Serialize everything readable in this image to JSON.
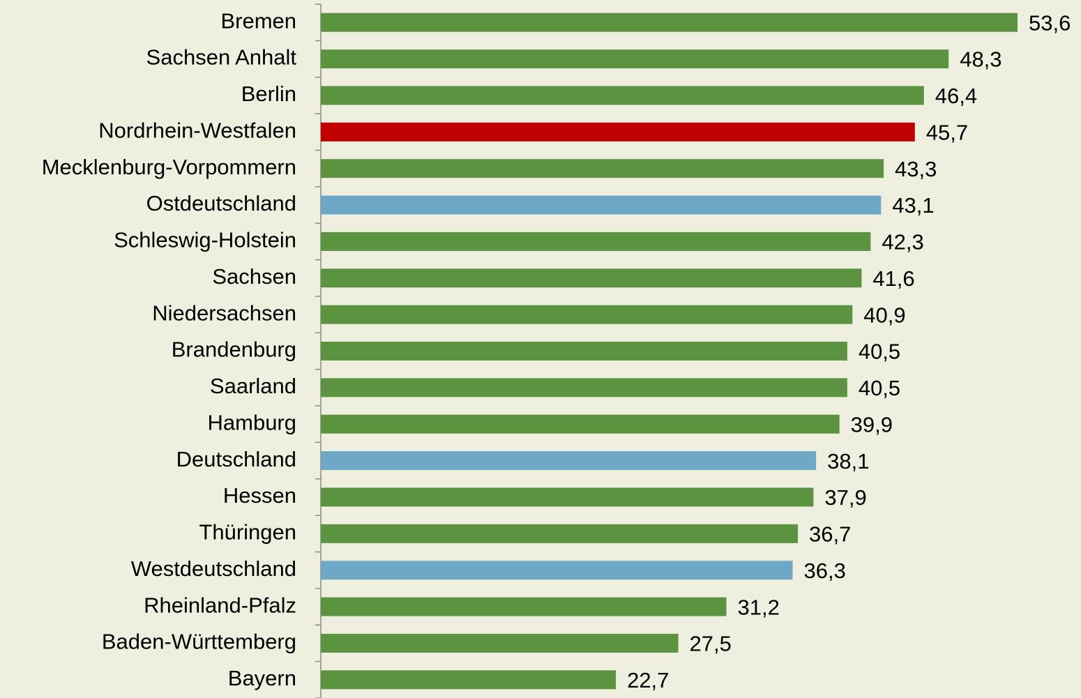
{
  "chart_data": {
    "type": "bar",
    "orientation": "horizontal",
    "categories": [
      "Bremen",
      "Sachsen Anhalt",
      "Berlin",
      "Nordrhein-Westfalen",
      "Mecklenburg-Vorpommern",
      "Ostdeutschland",
      "Schleswig-Holstein",
      "Sachsen",
      "Niedersachsen",
      "Brandenburg",
      "Saarland",
      "Hamburg",
      "Deutschland",
      "Hessen",
      "Thüringen",
      "Westdeutschland",
      "Rheinland-Pfalz",
      "Baden-Württemberg",
      "Bayern"
    ],
    "values": [
      53.6,
      48.3,
      46.4,
      45.7,
      43.3,
      43.1,
      42.3,
      41.6,
      40.9,
      40.5,
      40.5,
      39.9,
      38.1,
      37.9,
      36.7,
      36.3,
      31.2,
      27.5,
      22.7
    ],
    "value_labels": [
      "53,6",
      "48,3",
      "46,4",
      "45,7",
      "43,3",
      "43,1",
      "42,3",
      "41,6",
      "40,9",
      "40,5",
      "40,5",
      "39,9",
      "38,1",
      "37,9",
      "36,7",
      "36,3",
      "31,2",
      "27,5",
      "22,7"
    ],
    "colors": [
      "#5b9340",
      "#5b9340",
      "#5b9340",
      "#c00000",
      "#5b9340",
      "#6fa8c6",
      "#5b9340",
      "#5b9340",
      "#5b9340",
      "#5b9340",
      "#5b9340",
      "#5b9340",
      "#6fa8c6",
      "#5b9340",
      "#5b9340",
      "#6fa8c6",
      "#5b9340",
      "#5b9340",
      "#5b9340"
    ]
  }
}
